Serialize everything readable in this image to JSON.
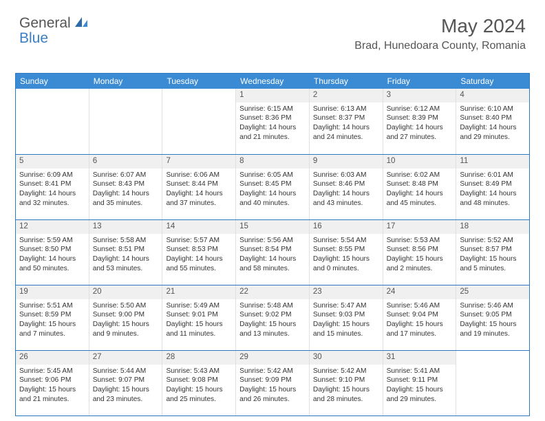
{
  "logo": {
    "part1": "General",
    "part2": "Blue"
  },
  "title": "May 2024",
  "location": "Brad, Hunedoara County, Romania",
  "weekdays": [
    "Sunday",
    "Monday",
    "Tuesday",
    "Wednesday",
    "Thursday",
    "Friday",
    "Saturday"
  ],
  "colors": {
    "header_bg": "#3b8bd4",
    "border": "#2d79c0",
    "daynum_bg": "#f0f0f0"
  },
  "weeks": [
    [
      null,
      null,
      null,
      {
        "n": "1",
        "sr": "6:15 AM",
        "ss": "8:36 PM",
        "dl": "14 hours and 21 minutes."
      },
      {
        "n": "2",
        "sr": "6:13 AM",
        "ss": "8:37 PM",
        "dl": "14 hours and 24 minutes."
      },
      {
        "n": "3",
        "sr": "6:12 AM",
        "ss": "8:39 PM",
        "dl": "14 hours and 27 minutes."
      },
      {
        "n": "4",
        "sr": "6:10 AM",
        "ss": "8:40 PM",
        "dl": "14 hours and 29 minutes."
      }
    ],
    [
      {
        "n": "5",
        "sr": "6:09 AM",
        "ss": "8:41 PM",
        "dl": "14 hours and 32 minutes."
      },
      {
        "n": "6",
        "sr": "6:07 AM",
        "ss": "8:43 PM",
        "dl": "14 hours and 35 minutes."
      },
      {
        "n": "7",
        "sr": "6:06 AM",
        "ss": "8:44 PM",
        "dl": "14 hours and 37 minutes."
      },
      {
        "n": "8",
        "sr": "6:05 AM",
        "ss": "8:45 PM",
        "dl": "14 hours and 40 minutes."
      },
      {
        "n": "9",
        "sr": "6:03 AM",
        "ss": "8:46 PM",
        "dl": "14 hours and 43 minutes."
      },
      {
        "n": "10",
        "sr": "6:02 AM",
        "ss": "8:48 PM",
        "dl": "14 hours and 45 minutes."
      },
      {
        "n": "11",
        "sr": "6:01 AM",
        "ss": "8:49 PM",
        "dl": "14 hours and 48 minutes."
      }
    ],
    [
      {
        "n": "12",
        "sr": "5:59 AM",
        "ss": "8:50 PM",
        "dl": "14 hours and 50 minutes."
      },
      {
        "n": "13",
        "sr": "5:58 AM",
        "ss": "8:51 PM",
        "dl": "14 hours and 53 minutes."
      },
      {
        "n": "14",
        "sr": "5:57 AM",
        "ss": "8:53 PM",
        "dl": "14 hours and 55 minutes."
      },
      {
        "n": "15",
        "sr": "5:56 AM",
        "ss": "8:54 PM",
        "dl": "14 hours and 58 minutes."
      },
      {
        "n": "16",
        "sr": "5:54 AM",
        "ss": "8:55 PM",
        "dl": "15 hours and 0 minutes."
      },
      {
        "n": "17",
        "sr": "5:53 AM",
        "ss": "8:56 PM",
        "dl": "15 hours and 2 minutes."
      },
      {
        "n": "18",
        "sr": "5:52 AM",
        "ss": "8:57 PM",
        "dl": "15 hours and 5 minutes."
      }
    ],
    [
      {
        "n": "19",
        "sr": "5:51 AM",
        "ss": "8:59 PM",
        "dl": "15 hours and 7 minutes."
      },
      {
        "n": "20",
        "sr": "5:50 AM",
        "ss": "9:00 PM",
        "dl": "15 hours and 9 minutes."
      },
      {
        "n": "21",
        "sr": "5:49 AM",
        "ss": "9:01 PM",
        "dl": "15 hours and 11 minutes."
      },
      {
        "n": "22",
        "sr": "5:48 AM",
        "ss": "9:02 PM",
        "dl": "15 hours and 13 minutes."
      },
      {
        "n": "23",
        "sr": "5:47 AM",
        "ss": "9:03 PM",
        "dl": "15 hours and 15 minutes."
      },
      {
        "n": "24",
        "sr": "5:46 AM",
        "ss": "9:04 PM",
        "dl": "15 hours and 17 minutes."
      },
      {
        "n": "25",
        "sr": "5:46 AM",
        "ss": "9:05 PM",
        "dl": "15 hours and 19 minutes."
      }
    ],
    [
      {
        "n": "26",
        "sr": "5:45 AM",
        "ss": "9:06 PM",
        "dl": "15 hours and 21 minutes."
      },
      {
        "n": "27",
        "sr": "5:44 AM",
        "ss": "9:07 PM",
        "dl": "15 hours and 23 minutes."
      },
      {
        "n": "28",
        "sr": "5:43 AM",
        "ss": "9:08 PM",
        "dl": "15 hours and 25 minutes."
      },
      {
        "n": "29",
        "sr": "5:42 AM",
        "ss": "9:09 PM",
        "dl": "15 hours and 26 minutes."
      },
      {
        "n": "30",
        "sr": "5:42 AM",
        "ss": "9:10 PM",
        "dl": "15 hours and 28 minutes."
      },
      {
        "n": "31",
        "sr": "5:41 AM",
        "ss": "9:11 PM",
        "dl": "15 hours and 29 minutes."
      },
      null
    ]
  ],
  "labels": {
    "sunrise": "Sunrise: ",
    "sunset": "Sunset: ",
    "daylight": "Daylight: "
  }
}
